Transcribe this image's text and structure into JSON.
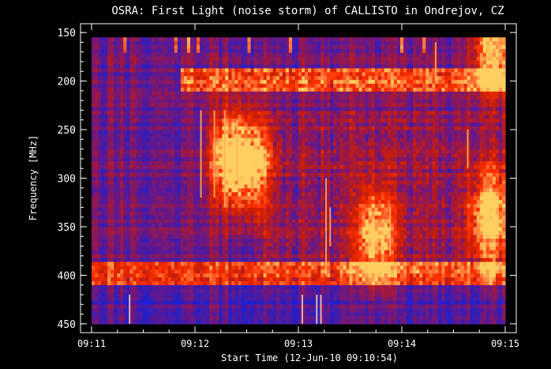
{
  "chart_data": {
    "type": "heatmap",
    "title": "OSRA: First Light (noise storm) of CALLISTO in Ondrejov, CZ",
    "xlabel": "Start Time (12-Jun-10 09:10:54)",
    "ylabel": "Frequency [MHz]",
    "x_ticks": [
      "09:11",
      "09:12",
      "09:13",
      "09:14",
      "09:15"
    ],
    "x_tick_minutes": [
      0,
      1,
      2,
      3,
      4
    ],
    "y_ticks": [
      150,
      200,
      250,
      300,
      350,
      400,
      450
    ],
    "xlim_minutes_after_0911": [
      0,
      4
    ],
    "ylim_mhz": [
      455,
      145
    ],
    "data_range_mhz": [
      155,
      450
    ],
    "grid": false,
    "colormap": [
      "#1a1aff",
      "#2020c8",
      "#601890",
      "#a01840",
      "#d02000",
      "#ff3000",
      "#ff8040",
      "#ffd060"
    ],
    "features": [
      {
        "kind": "burst_cluster",
        "t_min": 1.33,
        "f_mhz": 280,
        "intensity": 0.95
      },
      {
        "kind": "burst_cluster",
        "t_min": 1.55,
        "f_mhz": 285,
        "intensity": 0.9
      },
      {
        "kind": "burst_cluster",
        "t_min": 2.75,
        "f_mhz": 360,
        "intensity": 0.85
      },
      {
        "kind": "burst_cluster",
        "t_min": 3.85,
        "f_mhz": 340,
        "intensity": 0.95
      },
      {
        "kind": "burst_cluster",
        "t_min": 3.88,
        "f_mhz": 165,
        "intensity": 0.85
      },
      {
        "kind": "band",
        "f_from_mhz": 185,
        "f_to_mhz": 210,
        "t_from_min": 0.85,
        "t_to_min": 4.0,
        "intensity": 0.6
      },
      {
        "kind": "band",
        "f_from_mhz": 385,
        "f_to_mhz": 410,
        "t_from_min": 0.0,
        "t_to_min": 4.0,
        "intensity": 0.5
      }
    ]
  }
}
